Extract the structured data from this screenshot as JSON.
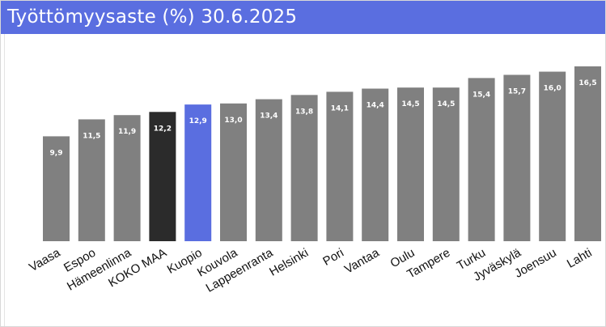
{
  "chart_data": {
    "type": "bar",
    "title": "Työttömyysaste (%) 30.6.2025",
    "xlabel": "",
    "ylabel": "",
    "categories": [
      "Vaasa",
      "Espoo",
      "Hämeenlinna",
      "KOKO MAA",
      "Kuopio",
      "Kouvola",
      "Lappeenranta",
      "Helsinki",
      "Pori",
      "Vantaa",
      "Oulu",
      "Tampere",
      "Turku",
      "Jyväskylä",
      "Joensuu",
      "Lahti"
    ],
    "values": [
      9.9,
      11.5,
      11.9,
      12.2,
      12.9,
      13.0,
      13.4,
      13.8,
      14.1,
      14.4,
      14.5,
      14.5,
      15.4,
      15.7,
      16.0,
      16.5
    ],
    "value_labels": [
      "9,9",
      "11,5",
      "11,9",
      "12,2",
      "12,9",
      "13,0",
      "13,4",
      "13,8",
      "14,1",
      "14,4",
      "14,5",
      "14,5",
      "15,4",
      "15,7",
      "16,0",
      "16,5"
    ],
    "ylim": [
      0,
      16.5
    ],
    "grid": false,
    "legend": "none",
    "colors": {
      "default": "#808080",
      "highlight_total": "#2b2b2b",
      "highlight_city": "#5a6ee0",
      "title_bar": "#5a6ee0"
    },
    "highlight": {
      "KOKO MAA": "highlight_total",
      "Kuopio": "highlight_city"
    }
  }
}
